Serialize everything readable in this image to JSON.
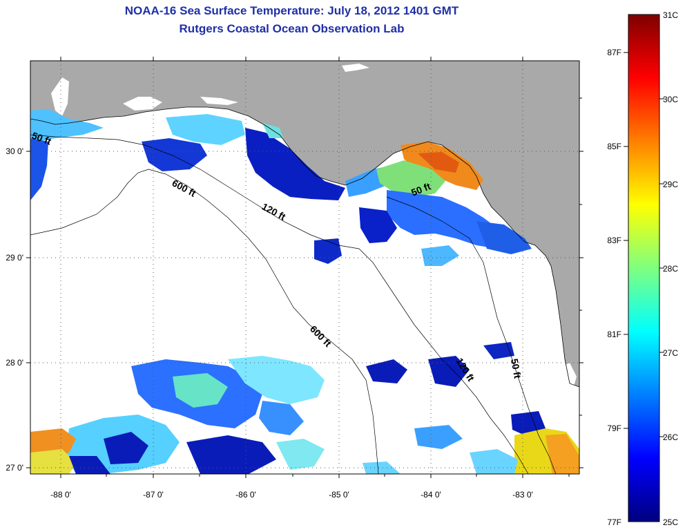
{
  "title": "NOAA-16 Sea Surface Temperature:  July 18, 2012 1401 GMT",
  "subtitle": "Rutgers Coastal Ocean Observation Lab",
  "axes": {
    "x_ticks": [
      "-88 0'",
      "-87 0'",
      "-86 0'",
      "-85 0'",
      "-84 0'",
      "-83 0'"
    ],
    "y_ticks": [
      "30 0'",
      "29 0'",
      "28 0'",
      "27 0'"
    ]
  },
  "contour_labels": [
    {
      "text": "50 ft",
      "id": "nw"
    },
    {
      "text": "600 ft",
      "id": "north"
    },
    {
      "text": "120 ft",
      "id": "mid"
    },
    {
      "text": "50 ft",
      "id": "bigbend"
    },
    {
      "text": "600 ft",
      "id": "south"
    },
    {
      "text": "120 ft",
      "id": "se"
    },
    {
      "text": "50 ft",
      "id": "east"
    }
  ],
  "colorbar": {
    "celsius_labels": [
      "31C",
      "30C",
      "29C",
      "28C",
      "27C",
      "26C",
      "25C"
    ],
    "fahrenheit_labels": [
      "87F",
      "85F",
      "83F",
      "81F",
      "79F",
      "77F"
    ],
    "min_c": 25,
    "max_c": 31,
    "colors": [
      "#00007f",
      "#0000ff",
      "#007fff",
      "#00ffff",
      "#7fff7f",
      "#ffff00",
      "#ff7f00",
      "#ff0000",
      "#7f0000"
    ]
  },
  "colors": {
    "land": "#a9a9a9",
    "title": "#1f2fa8"
  }
}
